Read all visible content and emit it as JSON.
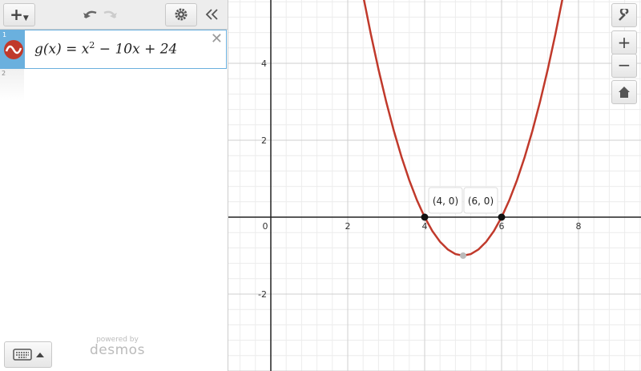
{
  "toolbar": {
    "add_button": "+"
  },
  "expressions": [
    {
      "number": "1",
      "parts": {
        "lhs": "g(x)",
        "equals": "=",
        "base": "x",
        "exponent": "2",
        "rest": "− 10x + 24"
      },
      "delete": "✕"
    },
    {
      "number": "2"
    }
  ],
  "footer": {
    "powered_by": "powered by",
    "brand": "desmos"
  },
  "zoom": {
    "zoom_in": "+",
    "zoom_out": "−"
  },
  "graph": {
    "xlim": [
      -1.104,
      9.625
    ],
    "ylim": [
      -4.0,
      5.646
    ],
    "xticks": [
      0,
      2,
      4,
      6,
      8
    ],
    "yticks": [
      -2,
      2,
      4
    ],
    "curve": {
      "color": "#c0392b",
      "x": [
        2.4,
        2.6,
        2.8,
        3.0,
        3.2,
        3.4,
        3.6,
        3.8,
        4.0,
        4.2,
        4.4,
        4.6,
        4.8,
        5.0,
        5.2,
        5.4,
        5.6,
        5.8,
        6.0,
        6.2,
        6.4,
        6.6,
        6.8,
        7.0,
        7.2,
        7.4,
        7.6
      ],
      "y": [
        5.76,
        4.76,
        3.84,
        3,
        2.24,
        1.56,
        0.96,
        0.44,
        0,
        -0.36,
        -0.64,
        -0.84,
        -0.96,
        -1,
        -0.96,
        -0.84,
        -0.64,
        -0.36,
        0,
        0.44,
        0.96,
        1.56,
        2.24,
        3,
        3.84,
        4.76,
        5.76
      ]
    },
    "points": [
      {
        "x": 4,
        "y": 0,
        "label": "(4, 0)"
      },
      {
        "x": 6,
        "y": 0,
        "label": "(6, 0)"
      }
    ],
    "vertex": {
      "x": 5,
      "y": -1
    }
  }
}
